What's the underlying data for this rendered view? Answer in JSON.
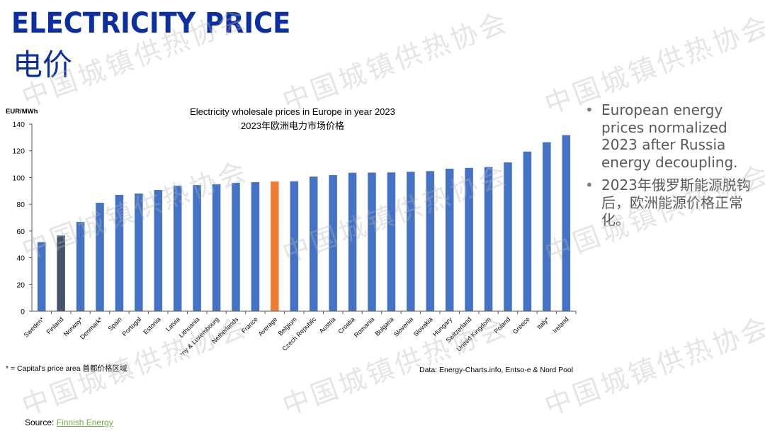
{
  "header": {
    "title_en": "ELECTRICITY PRICE",
    "title_cn": "电价",
    "title_color": "#0b2fa0"
  },
  "watermark_text": "中国城镇供热协会",
  "chart_data": {
    "type": "bar",
    "title": "Electricity wholesale prices in Europe in year 2023",
    "subtitle": "2023年欧洲电力市场价格",
    "xlabel": "",
    "ylabel": "EUR/MWh",
    "ylim": [
      0,
      140
    ],
    "yticks": [
      0,
      20,
      40,
      60,
      80,
      100,
      120,
      140
    ],
    "grid": false,
    "legend": "none",
    "categories": [
      "Sweden*",
      "Finland",
      "Norway*",
      "Denmark*",
      "Spain",
      "Portugal",
      "Estonia",
      "Latvia",
      "Lithuania",
      "Germany & Luxembourg",
      "Netherlands",
      "France",
      "Average",
      "Belgium",
      "Czech Republic",
      "Austria",
      "Croatia",
      "Romania",
      "Bulgaria",
      "Slovenia",
      "Slovakia",
      "Hungary",
      "Switzerland",
      "United Kingdom",
      "Poland",
      "Greece",
      "Italy*",
      "Ireland"
    ],
    "values": [
      51.7,
      56.6,
      66.8,
      81.1,
      87.0,
      88.0,
      90.7,
      93.8,
      94.4,
      95.0,
      96.0,
      96.5,
      97.0,
      97.2,
      100.7,
      101.8,
      103.6,
      103.7,
      103.8,
      104.3,
      104.8,
      106.6,
      107.2,
      107.8,
      111.3,
      119.4,
      126.4,
      131.7
    ],
    "colors": {
      "default": "#4472c4",
      "highlight": "#44546a",
      "average": "#ed7d31"
    },
    "highlight_categories": [
      "Finland"
    ],
    "average_category": "Average"
  },
  "bullets": [
    "European energy prices normalized 2023 after Russia energy decoupling.",
    "2023年俄罗斯能源脱钩后，欧洲能源价格正常化。"
  ],
  "footnote": "* = Capital's price area 首都价格区域",
  "data_source": "Data: Energy-Charts.info, Entso-e & Nord Pool",
  "source": {
    "label": "Source: ",
    "link_text": "Finnish Energy",
    "link_color": "#70ad47"
  }
}
